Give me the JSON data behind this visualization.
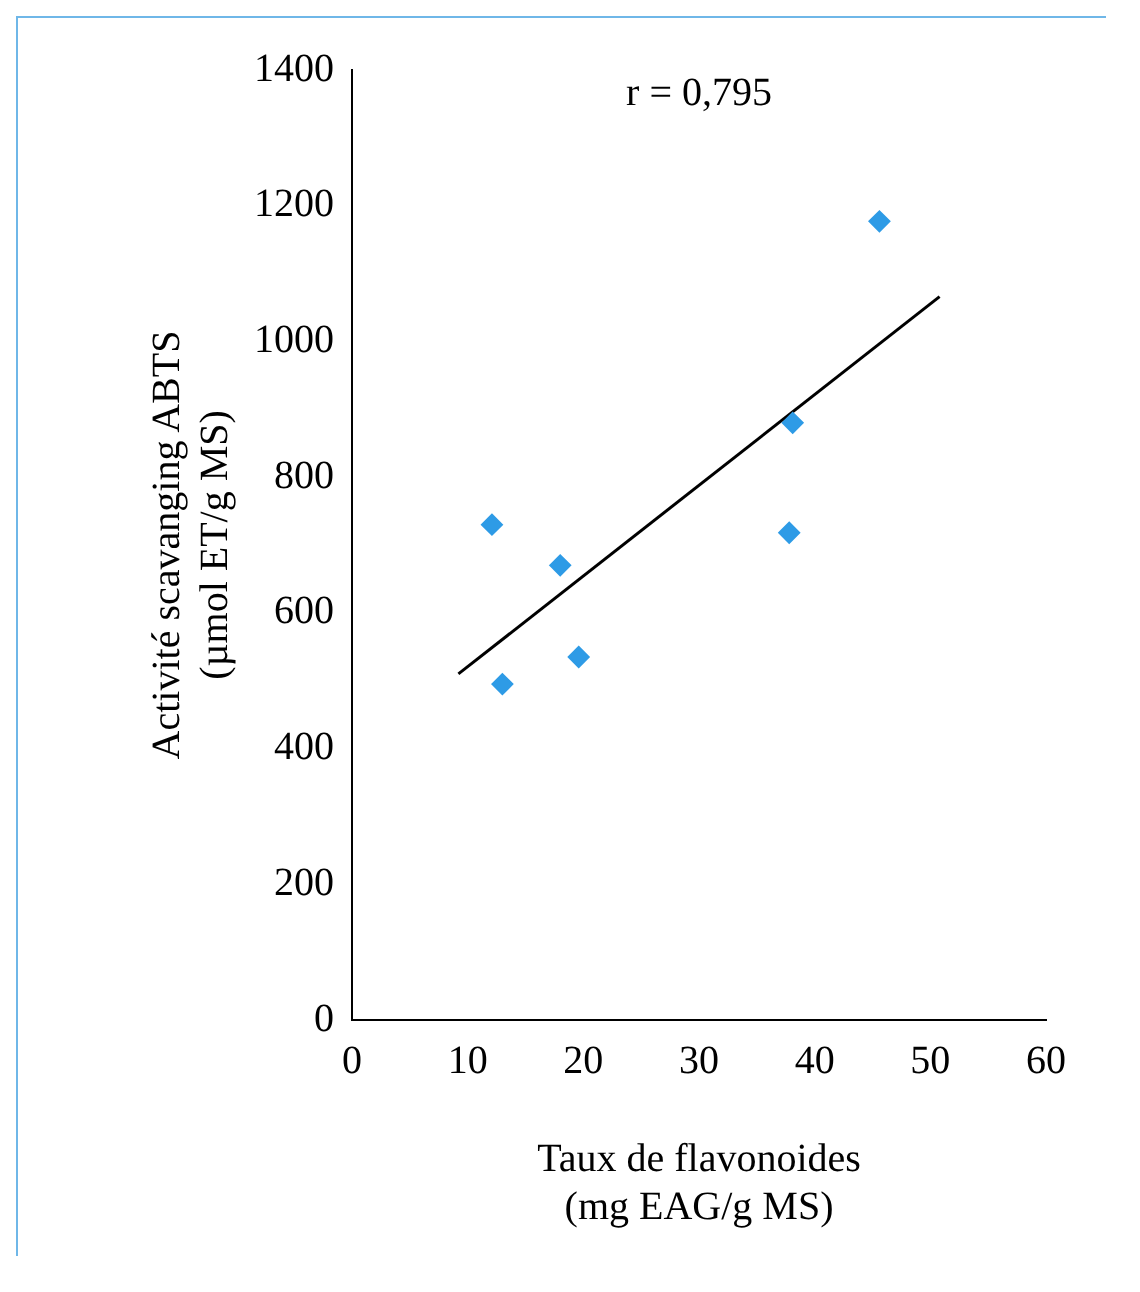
{
  "chart_data": {
    "type": "scatter",
    "xlabel": "Taux de flavonoides\n(mg EAG/g MS)",
    "ylabel": "Activité scavanging ABTS\n(µmol ET/g MS)",
    "annotations": [
      "r = 0,795"
    ],
    "series": [
      {
        "type": "scatter",
        "color": "#2e9be6",
        "marker": "diamond",
        "x": [
          12.1,
          13,
          18,
          19.6,
          37.8,
          38.1,
          45.6
        ],
        "values": [
          730,
          495,
          670,
          535,
          718,
          880,
          1177
        ]
      },
      {
        "type": "line",
        "color": "#000000",
        "marker": "none",
        "x": [
          9.2,
          50.8
        ],
        "values": [
          510,
          1066
        ]
      }
    ],
    "xlim": [
      0,
      60
    ],
    "xticks": [
      0,
      10,
      20,
      30,
      40,
      50,
      60
    ],
    "ylim": [
      0,
      1400
    ],
    "yticks": [
      0,
      200,
      400,
      600,
      800,
      1000,
      1200,
      1400
    ],
    "grid": false,
    "legend": false
  }
}
